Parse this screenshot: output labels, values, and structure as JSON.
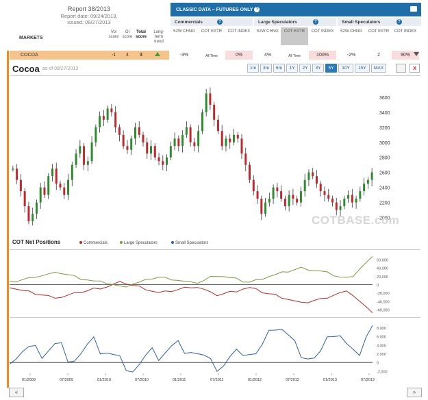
{
  "report": {
    "title": "Report 38/2013",
    "report_date": "Report date: 09/24/2013,",
    "issued": "issued: 09/27/2013",
    "markets_label": "MARKETS",
    "col_vol": "Vol score",
    "col_oi": "OI score",
    "col_total": "Total score",
    "col_trend": "Long-term trend"
  },
  "classic": {
    "title": "CLASSIC DATA – FUTURES ONLY",
    "groups": [
      "Commercials",
      "Large Speculators",
      "Small Speculators"
    ],
    "col_52w": "52W CHNG",
    "col_extr": "COT EXTR",
    "col_index": "COT INDEX"
  },
  "row": {
    "market": "COCOA",
    "vol": "-1",
    "oi": "4",
    "total": "3",
    "comm_52w": "-3%",
    "comm_extr": "All Time",
    "comm_index": "0%",
    "large_52w": "4%",
    "large_extr": "All Time",
    "large_index": "100%",
    "small_52w": "-2%",
    "small_extr": "2",
    "small_index": "90%"
  },
  "chart_header": {
    "title": "Cocoa",
    "as_of": "as of 09/27/2013",
    "ranges": [
      "1m",
      "3m",
      "6m",
      "1Y",
      "2Y",
      "3Y",
      "5Y",
      "10Y",
      "15Y",
      "MAX"
    ],
    "active_range": "5Y"
  },
  "net_positions": {
    "title": "COT Net Positions",
    "legend": [
      "Commercials",
      "Large Speculators",
      "Small Speculators"
    ]
  },
  "watermark": "COTBASE.com",
  "colors": {
    "commercials": "#b72828",
    "large": "#7a9a3a",
    "small": "#2e5fa8",
    "accent": "#1e6fa9",
    "orange": "#f08c1e"
  },
  "chart_data": [
    {
      "type": "candlestick",
      "title": "Cocoa",
      "x_ticks": [
        "01/2009",
        "07/2009",
        "01/2010",
        "07/2010",
        "01/2011",
        "07/2011",
        "01/2012",
        "07/2012",
        "01/2013",
        "07/2013"
      ],
      "y_ticks": [
        2000,
        2200,
        2400,
        2600,
        2800,
        3000,
        3200,
        3400,
        3600
      ],
      "ylim": [
        1850,
        3800
      ],
      "close_series": [
        2650,
        2500,
        2350,
        2150,
        1950,
        2050,
        2200,
        2400,
        2300,
        2550,
        2650,
        2450,
        2400,
        2300,
        2500,
        2700,
        2850,
        2950,
        2700,
        2750,
        3000,
        3200,
        3350,
        3300,
        3450,
        3400,
        3200,
        3100,
        2950,
        2900,
        3050,
        3200,
        3100,
        3000,
        2850,
        2950,
        2800,
        2750,
        2700,
        2800,
        2950,
        3050,
        2950,
        3100,
        3200,
        3000,
        2950,
        3150,
        3400,
        3650,
        3500,
        3300,
        3150,
        2950,
        3050,
        3000,
        3100,
        3050,
        2850,
        2700,
        2500,
        2350,
        2250,
        2050,
        2200,
        2250,
        2400,
        2350,
        2250,
        2150,
        2300,
        2250,
        2200,
        2350,
        2500,
        2600,
        2550,
        2450,
        2350,
        2300,
        2250,
        2200,
        2100,
        2150,
        2250,
        2300,
        2200,
        2250,
        2350,
        2450,
        2500,
        2600
      ]
    },
    {
      "type": "line",
      "title": "COT Net Positions",
      "y_ticks": [
        -60000,
        -40000,
        -20000,
        0,
        20000,
        40000,
        60000
      ],
      "ylim": [
        -70000,
        75000
      ],
      "series": [
        {
          "name": "Commercials",
          "values": [
            -5000,
            -10000,
            -15000,
            -18000,
            -22000,
            -25000,
            -28000,
            -30000,
            -30000,
            -26000,
            -22000,
            -18000,
            -15000,
            -10000,
            -8000,
            -5000,
            0,
            5000,
            3000,
            -2000,
            -5000,
            -10000,
            -15000,
            -20000,
            -18000,
            -15000,
            -12000,
            -8000,
            -5000,
            -6000,
            -12000,
            -20000,
            -25000,
            -22000,
            -18000,
            -15000,
            -10000,
            -8000,
            -12000,
            -18000,
            -22000,
            -25000,
            -30000,
            -35000,
            -40000,
            -45000,
            -42000,
            -38000,
            -35000,
            -30000,
            -25000,
            -20000,
            -18000,
            -25000,
            -40000,
            -55000,
            -65000
          ]
        },
        {
          "name": "Large Speculators",
          "values": [
            5000,
            8000,
            12000,
            15000,
            20000,
            22000,
            25000,
            27000,
            28000,
            24000,
            20000,
            15000,
            12000,
            8000,
            6000,
            4000,
            0,
            -5000,
            -3000,
            2000,
            5000,
            10000,
            15000,
            18000,
            16000,
            14000,
            11000,
            7000,
            4000,
            5000,
            10000,
            18000,
            22000,
            20000,
            16000,
            13000,
            8000,
            6000,
            10000,
            15000,
            20000,
            23000,
            28000,
            32000,
            36000,
            40000,
            38000,
            34000,
            32000,
            28000,
            23000,
            18000,
            16000,
            22000,
            38000,
            52000,
            65000
          ]
        },
        {
          "name": "Small Speculators",
          "values": [
            1000,
            1500,
            2500,
            3000,
            2500,
            2000,
            3000,
            4000,
            3500,
            1500,
            1000,
            2000,
            3500,
            4500,
            3000,
            2500,
            1500,
            500,
            -500,
            -1500,
            -500,
            1000,
            2000,
            1500,
            2500,
            3500,
            4000,
            3500,
            3000,
            2000,
            1000,
            -500,
            -1000,
            -500,
            1000,
            2000,
            3000,
            2500,
            2000,
            3500,
            6000,
            8500,
            8000,
            6000,
            4000,
            2500,
            1500,
            1000,
            2000,
            4500,
            7000,
            6500,
            4000,
            2000,
            3000,
            6500,
            8500
          ]
        }
      ]
    }
  ]
}
